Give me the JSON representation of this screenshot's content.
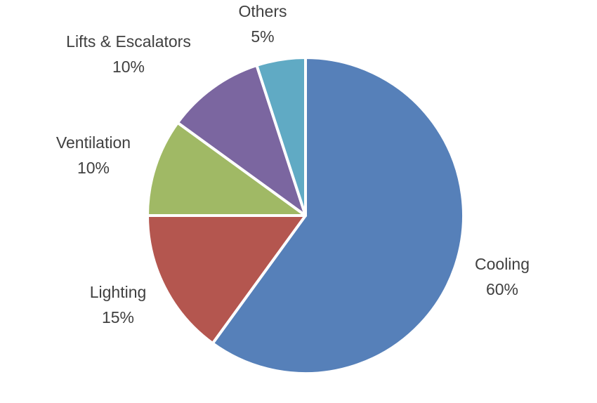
{
  "chart_data": {
    "type": "pie",
    "title": "",
    "start_angle_deg": 0,
    "direction": "clockwise",
    "legend": "none",
    "slices": [
      {
        "label": "Cooling",
        "value": 60,
        "display": "60%",
        "color": "#5680B9"
      },
      {
        "label": "Lighting",
        "value": 15,
        "display": "15%",
        "color": "#B4564F"
      },
      {
        "label": "Ventilation",
        "value": 10,
        "display": "10%",
        "color": "#A0B965"
      },
      {
        "label": "Lifts & Escalators",
        "value": 10,
        "display": "10%",
        "color": "#7B66A0"
      },
      {
        "label": "Others",
        "value": 5,
        "display": "5%",
        "color": "#60AAC4"
      }
    ]
  }
}
